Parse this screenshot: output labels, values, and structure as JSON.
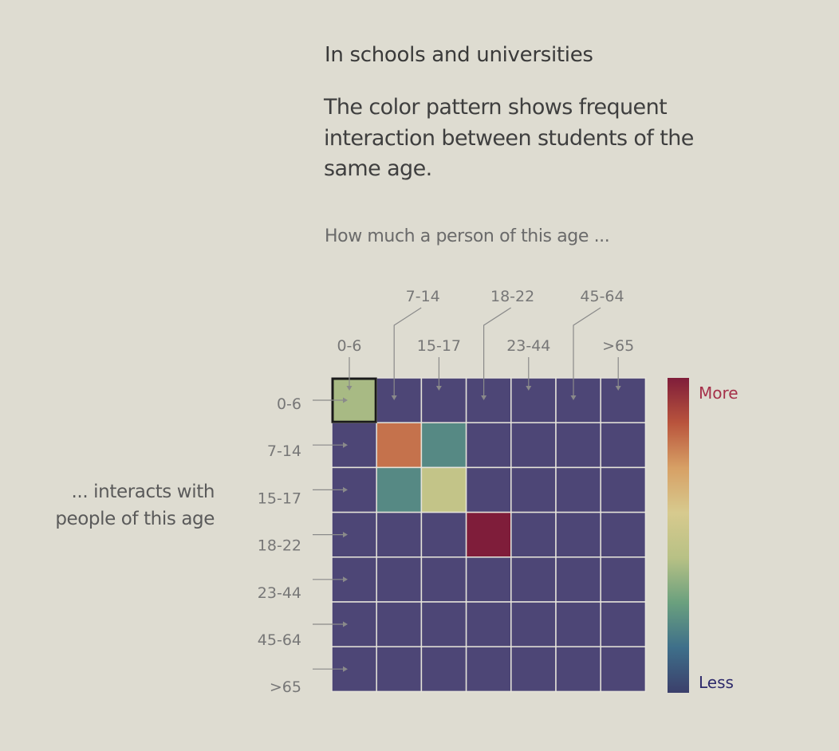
{
  "header": {
    "title": "In schools and universities",
    "description": "The color pattern shows frequent interaction between students of the same age.",
    "question": "How much a person of this age ..."
  },
  "colors": {
    "background": "#dedcd1",
    "more": "#a5314a",
    "less": "#2e2a6b",
    "grid_line": "#e6e4da",
    "selected_border": "#1a1a1a"
  },
  "chart_data": {
    "type": "heatmap",
    "title": "",
    "xlabel": "How much a person of this age ...",
    "ylabel": "... interacts with people of this age",
    "x_categories": [
      "0-6",
      "7-14",
      "15-17",
      "18-22",
      "23-44",
      "45-64",
      ">65"
    ],
    "y_categories": [
      "0-6",
      "7-14",
      "15-17",
      "18-22",
      "23-44",
      "45-64",
      ">65"
    ],
    "values": [
      [
        0.4,
        0.0,
        0.0,
        0.0,
        0.0,
        0.0,
        0.0
      ],
      [
        0.0,
        0.8,
        0.22,
        0.0,
        0.0,
        0.0,
        0.0
      ],
      [
        0.0,
        0.22,
        0.48,
        0.0,
        0.0,
        0.0,
        0.0
      ],
      [
        0.0,
        0.0,
        0.0,
        1.0,
        0.0,
        0.0,
        0.0
      ],
      [
        0.0,
        0.0,
        0.0,
        0.0,
        0.0,
        0.0,
        0.0
      ],
      [
        0.0,
        0.0,
        0.0,
        0.0,
        0.0,
        0.0,
        0.0
      ],
      [
        0.0,
        0.0,
        0.0,
        0.0,
        0.0,
        0.0,
        0.0
      ]
    ],
    "value_range": [
      0,
      1
    ],
    "selected_cell": {
      "row": 0,
      "col": 0
    },
    "legend": {
      "high_label": "More",
      "low_label": "Less",
      "placement": "right"
    },
    "colorscale": [
      "#3b3f6b",
      "#3e6f8a",
      "#6aa07e",
      "#b8c185",
      "#d7ca8e",
      "#d7a065",
      "#b9543c",
      "#7f1d3a"
    ]
  }
}
